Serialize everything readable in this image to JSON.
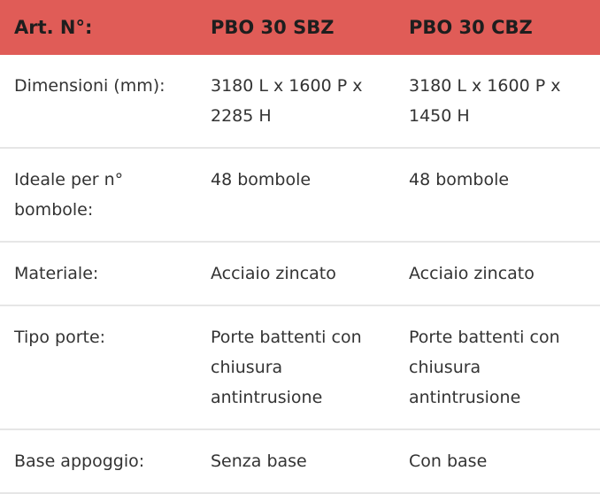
{
  "table": {
    "header": [
      "Art. N°:",
      "PBO 30 SBZ",
      "PBO 30 CBZ"
    ],
    "rows": [
      [
        "Dimensioni (mm):",
        "3180 L x 1600 P x 2285 H",
        "3180 L x 1600 P x 1450 H"
      ],
      [
        "Ideale per n° bombole:",
        "48 bombole",
        "48 bombole"
      ],
      [
        "Materiale:",
        "Acciaio zincato",
        "Acciaio zincato"
      ],
      [
        "Tipo porte:",
        "Porte battenti con chiusura antintrusione",
        "Porte battenti con chiusura antintrusione"
      ],
      [
        "Base appoggio:",
        "Senza base",
        "Con base"
      ]
    ]
  }
}
